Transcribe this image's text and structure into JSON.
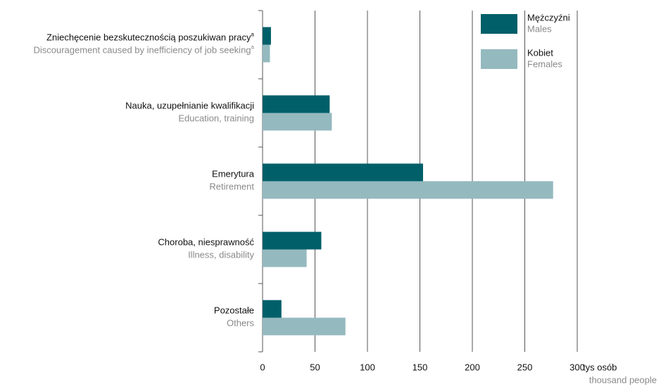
{
  "chart_data": {
    "type": "bar",
    "orientation": "horizontal",
    "categories": [
      "Zniechęcenie bezskutecznością poszukiwan pracy",
      "Nauka, uzupełnianie kwalifikacji",
      "Emerytura",
      "Choroba, niesprawność",
      "Pozostałe"
    ],
    "categories_en": [
      "Discouragement caused by inefficiency of job seeking",
      "Education, training",
      "Retirement",
      "Illness, disability",
      "Others"
    ],
    "category_notes": [
      "a",
      null,
      null,
      null,
      null
    ],
    "series": [
      {
        "name": "Mężczyźni",
        "name_en": "Males",
        "color": "#005f69",
        "values": [
          8,
          64,
          153,
          56,
          18
        ]
      },
      {
        "name": "Kobiet",
        "name_en": "Females",
        "color": "#94b9bf",
        "values": [
          7,
          66,
          277,
          42,
          79
        ]
      }
    ],
    "xlim": [
      0,
      300
    ],
    "xticks": [
      0,
      50,
      100,
      150,
      200,
      250,
      300
    ],
    "xlabel": "tys osób",
    "xlabel_en": "thousand people",
    "grid": true,
    "legend": "top-right"
  }
}
